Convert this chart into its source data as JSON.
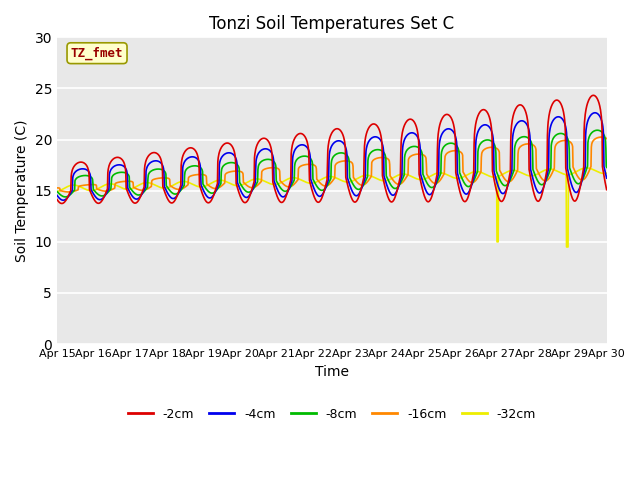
{
  "title": "Tonzi Soil Temperatures Set C",
  "xlabel": "Time",
  "ylabel": "Soil Temperature (C)",
  "ylim": [
    0,
    30
  ],
  "yticks": [
    0,
    5,
    10,
    15,
    20,
    25,
    30
  ],
  "n_days": 15,
  "xtick_labels": [
    "Apr 15",
    "Apr 16",
    "Apr 17",
    "Apr 18",
    "Apr 19",
    "Apr 20",
    "Apr 21",
    "Apr 22",
    "Apr 23",
    "Apr 24",
    "Apr 25",
    "Apr 26",
    "Apr 27",
    "Apr 28",
    "Apr 29",
    "Apr 30"
  ],
  "legend_entries": [
    "-2cm",
    "-4cm",
    "-8cm",
    "-16cm",
    "-32cm"
  ],
  "line_colors": [
    "#dd0000",
    "#0000ee",
    "#00bb00",
    "#ff8800",
    "#eeee00"
  ],
  "label_box_text": "TZ_fmet",
  "label_box_facecolor": "#ffffcc",
  "label_box_edgecolor": "#999900",
  "label_box_text_color": "#990000",
  "plot_bg_color": "#e8e8e8",
  "fig_bg_color": "#ffffff",
  "grid_color": "#ffffff",
  "line_width": 1.2,
  "title_fontsize": 12,
  "axis_label_fontsize": 10,
  "tick_fontsize": 8
}
